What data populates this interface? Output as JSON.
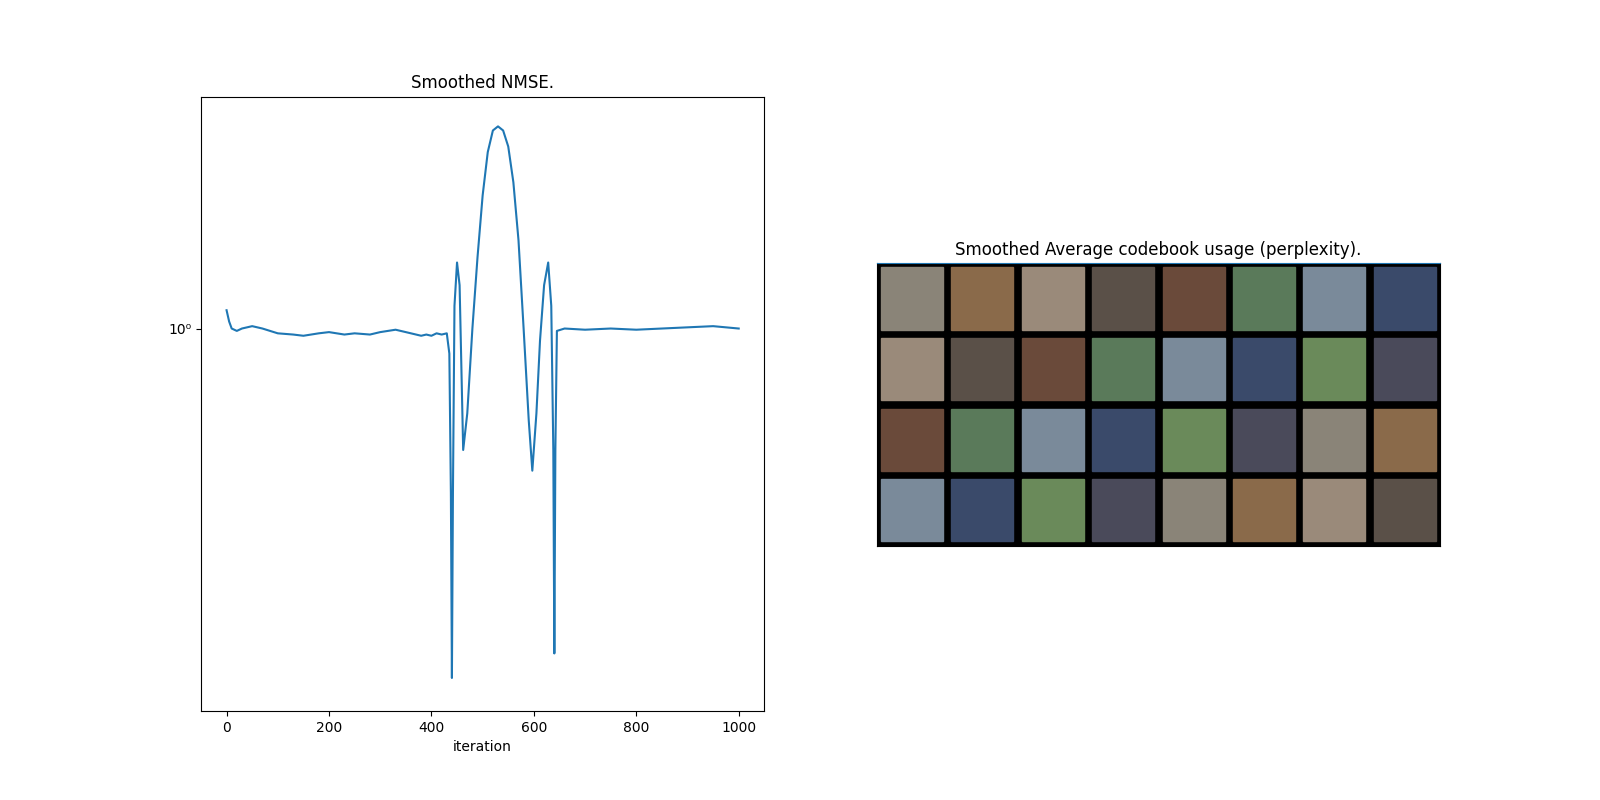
{
  "chart_data": [
    {
      "type": "line",
      "title": "Smoothed NMSE.",
      "x_label": "iteration",
      "log": "y",
      "color": "#1f77b4",
      "x": [
        0,
        5,
        10,
        20,
        30,
        50,
        70,
        100,
        130,
        150,
        180,
        200,
        230,
        250,
        280,
        300,
        330,
        350,
        380,
        390,
        400,
        410,
        420,
        430,
        435,
        438,
        440,
        442,
        445,
        450,
        455,
        462,
        470,
        480,
        490,
        500,
        510,
        520,
        530,
        540,
        550,
        560,
        570,
        580,
        590,
        597,
        605,
        612,
        620,
        628,
        634,
        638,
        640,
        642,
        645,
        660,
        700,
        750,
        800,
        850,
        900,
        950,
        1000
      ],
      "values": [
        1.08,
        1.03,
        1.0,
        0.99,
        1.0,
        1.01,
        1.0,
        0.98,
        0.975,
        0.97,
        0.98,
        0.985,
        0.975,
        0.98,
        0.975,
        0.985,
        0.995,
        0.985,
        0.97,
        0.975,
        0.97,
        0.98,
        0.975,
        0.98,
        0.9,
        0.5,
        0.23,
        0.5,
        1.1,
        1.32,
        1.2,
        0.6,
        0.7,
        1.0,
        1.35,
        1.75,
        2.1,
        2.3,
        2.34,
        2.3,
        2.15,
        1.85,
        1.45,
        1.0,
        0.68,
        0.55,
        0.7,
        0.95,
        1.2,
        1.32,
        1.1,
        0.6,
        0.255,
        0.6,
        0.99,
        1.0,
        0.995,
        1.0,
        0.995,
        1.0,
        1.005,
        1.01,
        1.0
      ],
      "xlim": [
        -50,
        1050
      ],
      "xticks": [
        0,
        200,
        400,
        600,
        800,
        1000
      ],
      "ylim": [
        0.2,
        2.65
      ],
      "yticks": [
        {
          "value": 1,
          "label": "10⁰"
        }
      ]
    },
    {
      "type": "image",
      "title": "Smoothed Average codebook usage (perplexity)."
    }
  ]
}
